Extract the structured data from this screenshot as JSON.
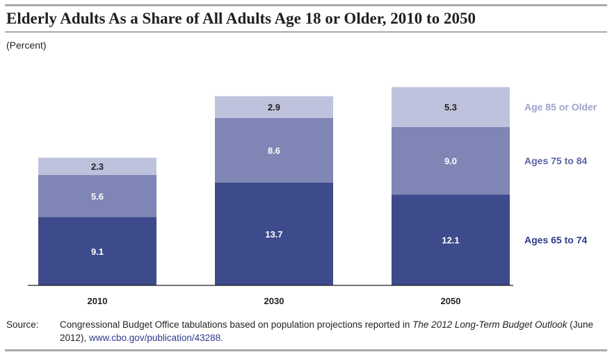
{
  "title": "Elderly Adults As a Share of All Adults Age 18 or Older, 2010 to 2050",
  "unit_label": "(Percent)",
  "source": {
    "label": "Source:",
    "text_before": "Congressional Budget Office tabulations based on population projections reported in ",
    "publication": "The 2012 Long-Term Budget Outlook",
    "text_after": " (June 2012), ",
    "link": "www.cbo.gov/publication/43288",
    "end": "."
  },
  "chart_data": {
    "type": "bar",
    "stacked": true,
    "categories": [
      "2010",
      "2030",
      "2050"
    ],
    "series": [
      {
        "name": "Ages 65 to 74",
        "values": [
          9.1,
          13.7,
          12.1
        ],
        "color": "#3d4a8c"
      },
      {
        "name": "Ages 75 to 84",
        "values": [
          5.6,
          8.6,
          9.0
        ],
        "color": "#7f86b5"
      },
      {
        "name": "Age 85 or Older",
        "values": [
          2.3,
          2.9,
          5.3
        ],
        "color": "#bfc2dc"
      }
    ],
    "value_labels": [
      [
        "9.1",
        "13.7",
        "12.1"
      ],
      [
        "5.6",
        "8.6",
        "9.0"
      ],
      [
        "2.3",
        "2.9",
        "5.3"
      ]
    ],
    "legend_colors": [
      "#2e3a8c",
      "#5b64a3",
      "#9da2c9"
    ],
    "legend_placement": "right",
    "ylim": [
      0,
      27
    ],
    "grid": false
  }
}
